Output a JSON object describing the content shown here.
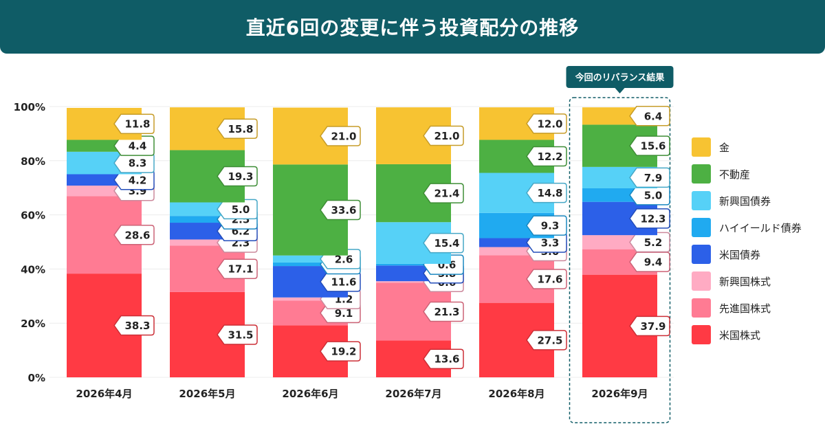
{
  "title": "直近6回の変更に伴う投資配分の推移",
  "chart_data": {
    "type": "bar",
    "stacked": true,
    "title": "直近6回の変更に伴う投資配分の推移",
    "categories": [
      "2026年4月",
      "2026年5月",
      "2026年6月",
      "2026年7月",
      "2026年8月",
      "2026年9月"
    ],
    "ylim": [
      0,
      100
    ],
    "y_ticks": [
      "0%",
      "20%",
      "40%",
      "60%",
      "80%",
      "100%"
    ],
    "grid": true,
    "legend_position": "right",
    "series": [
      {
        "name": "米国株式",
        "color": "#ff3a44",
        "values": [
          38.3,
          31.5,
          19.2,
          13.6,
          27.5,
          37.9
        ]
      },
      {
        "name": "先進国株式",
        "color": "#ff7b93",
        "values": [
          28.6,
          17.1,
          9.1,
          21.3,
          17.6,
          9.4
        ]
      },
      {
        "name": "新興国株式",
        "color": "#ffabc3",
        "values": [
          3.9,
          2.3,
          1.2,
          0.6,
          3.0,
          5.2
        ]
      },
      {
        "name": "米国債券",
        "color": "#2c60e8",
        "values": [
          4.2,
          6.2,
          11.6,
          5.8,
          3.3,
          12.3
        ]
      },
      {
        "name": "ハイイールド債券",
        "color": "#20aaf0",
        "values": [
          0,
          2.5,
          1.3,
          0.6,
          9.3,
          5.0
        ]
      },
      {
        "name": "新興国債券",
        "color": "#56d1f7",
        "values": [
          8.3,
          5.0,
          2.6,
          15.4,
          14.8,
          7.9
        ]
      },
      {
        "name": "不動産",
        "color": "#4db043",
        "values": [
          4.4,
          19.3,
          33.6,
          21.4,
          12.2,
          15.6
        ]
      },
      {
        "name": "金",
        "color": "#f7c332",
        "values": [
          11.8,
          15.8,
          21.0,
          21.0,
          12.0,
          6.4
        ]
      }
    ],
    "legend_order": [
      "金",
      "不動産",
      "新興国債券",
      "ハイイールド債券",
      "米国債券",
      "新興国株式",
      "先進国株式",
      "米国株式"
    ],
    "highlight": {
      "category_index": 5,
      "label": "今回のリバランス結果",
      "color": "#0f5c66"
    }
  }
}
